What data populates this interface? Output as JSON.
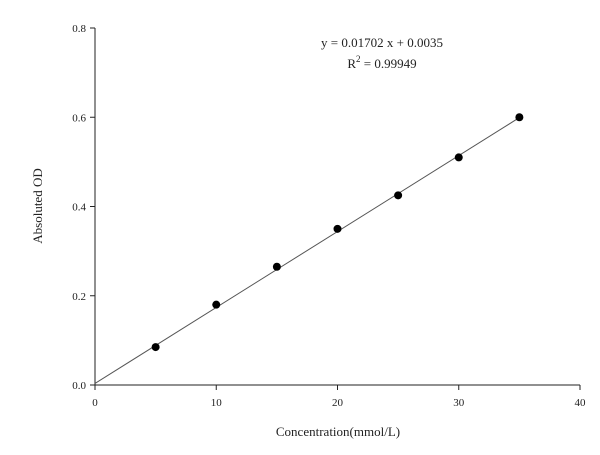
{
  "chart_data": {
    "type": "scatter",
    "title": "",
    "xlabel": "Concentration(mmol/L)",
    "ylabel": "Absoluted OD",
    "xlim": [
      0,
      40
    ],
    "ylim": [
      0,
      0.8
    ],
    "x_ticks": [
      0,
      10,
      20,
      30,
      40
    ],
    "y_ticks": [
      0.0,
      0.2,
      0.4,
      0.6,
      0.8
    ],
    "x_tick_labels": [
      "0",
      "10",
      "20",
      "30",
      "40"
    ],
    "y_tick_labels": [
      "0.0",
      "0.2",
      "0.4",
      "0.6",
      "0.8"
    ],
    "grid": false,
    "legend": "none",
    "series": [
      {
        "x": [
          5,
          10,
          15,
          20,
          25,
          30,
          35
        ],
        "y": [
          0.085,
          0.18,
          0.265,
          0.35,
          0.425,
          0.51,
          0.6
        ]
      }
    ],
    "fit": {
      "slope": 0.01702,
      "intercept": 0.0035,
      "x_range": [
        0,
        35
      ]
    },
    "annotations": {
      "equation": "y = 0.01702 x + 0.0035",
      "r2_prefix": "R",
      "r2_exp": "2",
      "r2_value": " = 0.99949"
    },
    "colors": {
      "axis": "#222222",
      "marker": "#000000",
      "fit_line": "#555555"
    }
  }
}
